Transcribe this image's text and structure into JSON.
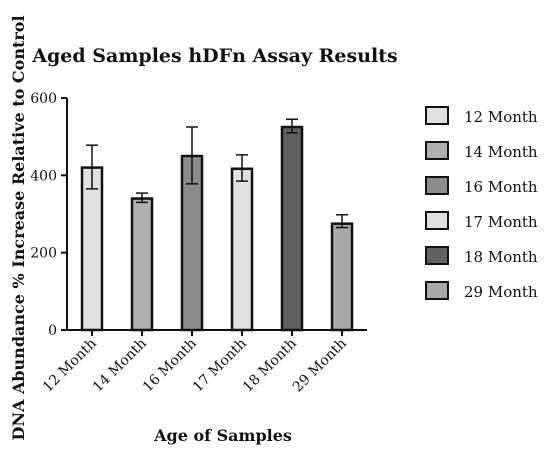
{
  "chart_data": {
    "type": "bar",
    "title": "Aged Samples hDFn Assay Results",
    "xlabel": "Age of Samples",
    "ylabel": "DNA Abundance % Increase Relative to Control",
    "ylim": [
      0,
      600
    ],
    "yticks": [
      0,
      200,
      400,
      600
    ],
    "categories": [
      "12 Month",
      "14 Month",
      "16 Month",
      "17 Month",
      "18 Month",
      "29 Month"
    ],
    "values": [
      420,
      340,
      450,
      417,
      525,
      275
    ],
    "error_upper": [
      478,
      354,
      525,
      453,
      545,
      298
    ],
    "error_lower": [
      365,
      330,
      378,
      385,
      510,
      265
    ],
    "colors": [
      "#e0e0e0",
      "#b0b0b0",
      "#8c8c8c",
      "#e0e0e0",
      "#616161",
      "#a8a8a8"
    ],
    "legend": [
      "12 Month",
      "14 Month",
      "16 Month",
      "17 Month",
      "18 Month",
      "29 Month"
    ],
    "legend_placement": "right",
    "grid": false
  }
}
